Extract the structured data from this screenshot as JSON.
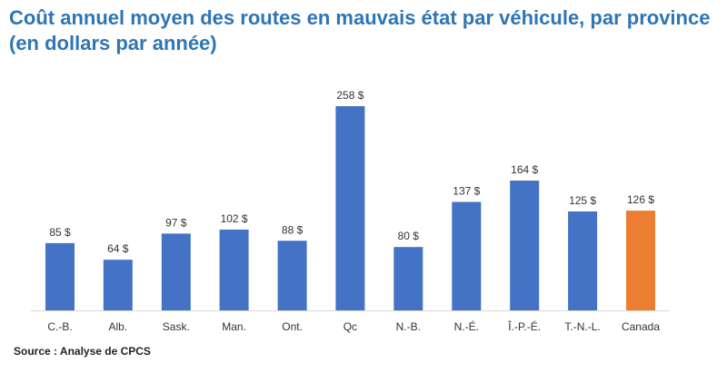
{
  "chart_data": {
    "type": "bar",
    "title": "Coût annuel moyen des routes en mauvais état par véhicule, par province (en dollars par année)",
    "categories": [
      "C.-B.",
      "Alb.",
      "Sask.",
      "Man.",
      "Ont.",
      "Qc",
      "N.-B.",
      "N.-É.",
      "Î.-P.-É.",
      "T.-N.-L.",
      "Canada"
    ],
    "values": [
      85,
      64,
      97,
      102,
      88,
      258,
      80,
      137,
      164,
      125,
      126
    ],
    "data_labels": [
      "85 $",
      "64 $",
      "97 $",
      "102 $",
      "88 $",
      "258 $",
      "80 $",
      "137 $",
      "164 $",
      "125 $",
      "126 $"
    ],
    "xlabel": "",
    "ylabel": "",
    "ylim": [
      0,
      258
    ],
    "grid": false,
    "colors": {
      "default": "#4472c4",
      "highlight": "#ed7d31",
      "highlight_category": "Canada"
    }
  },
  "source": "Source : Analyse de CPCS"
}
